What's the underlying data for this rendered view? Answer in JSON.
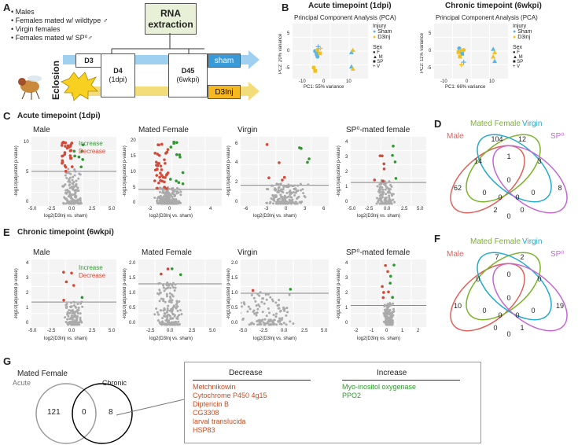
{
  "panels": {
    "A": "A",
    "B": "B",
    "C": "C",
    "D": "D",
    "E": "E",
    "F": "F",
    "G": "G"
  },
  "panelA": {
    "groups": [
      "Males",
      "Females mated w/ wildtype ♂",
      "Virgin females",
      "Females mated w/ SP⁰♂"
    ],
    "rna": "RNA extraction",
    "eclosion": "Eclosion",
    "d3": "D3",
    "d4": "D4",
    "d4sub": "(1dpi)",
    "d45": "D45",
    "d45sub": "(6wkpi)",
    "sham": "sham",
    "inj": "D3Inj"
  },
  "panelB": {
    "acute_title": "Acute timepoint (1dpi)",
    "chronic_title": "Chronic timepoint (6wkpi)",
    "pca_title": "Principal Component Analysis (PCA)",
    "acute_y": "PC2: 20% variance",
    "acute_x": "PC1: 55% variance",
    "chronic_y": "PC2: 11% variance",
    "chronic_x": "PC1: 66% variance",
    "injury_label": "Injury",
    "sham_label": "Sham",
    "inj_label": "D3inj",
    "sex_label": "Sex",
    "sex_items": [
      "F",
      "M",
      "SP",
      "V"
    ],
    "acute_xticks": [
      "-10",
      "0",
      "10"
    ],
    "acute_yticks": [
      "5",
      "0",
      "-5"
    ],
    "chronic_xticks": [
      "-10",
      "0",
      "10"
    ],
    "chronic_yticks": [
      "5",
      "0",
      "-5"
    ]
  },
  "panelC": {
    "title": "Acute timepoint (1dpi)",
    "plots": [
      "Male",
      "Mated Female",
      "Virgin",
      "SP⁰-mated female"
    ],
    "increase": "Increase",
    "decrease": "Decrease",
    "ylabel": "-log10(adjusted p-value)",
    "xlabel": "log2(D3Inj vs. sham)",
    "male_yticks": [
      "10",
      "5",
      "0"
    ],
    "male_xticks": [
      "-5.0",
      "-2.5",
      "0.0",
      "2.5",
      "5.0"
    ],
    "mf_yticks": [
      "20",
      "15",
      "10",
      "5",
      "0"
    ],
    "mf_xticks": [
      "-2",
      "0",
      "2",
      "4"
    ],
    "v_yticks": [
      "6",
      "4",
      "2",
      "0"
    ],
    "v_xticks": [
      "-6",
      "-3",
      "0",
      "3",
      "6"
    ],
    "sp_yticks": [
      "4",
      "3",
      "2",
      "1",
      "0"
    ],
    "sp_xticks": [
      "-5.0",
      "-2.5",
      "0.0",
      "2.5",
      "5.0"
    ]
  },
  "panelE": {
    "title": "Chronic timepoint (6wkpi)",
    "plots": [
      "Male",
      "Mated Female",
      "Virgin",
      "SP⁰-mated female"
    ],
    "increase": "Increase",
    "decrease": "Decrease",
    "ylabel": "-log10(adjusted p-value)",
    "xlabel": "log2(D3Inj vs. sham)",
    "male_yticks": [
      "4",
      "3",
      "2",
      "1",
      "0"
    ],
    "male_xticks": [
      "-5.0",
      "-2.5",
      "0.0",
      "2.5",
      "5.0"
    ],
    "mf_yticks": [
      "2.0",
      "1.5",
      "1.0",
      "0.5",
      "0.0"
    ],
    "mf_xticks": [
      "-2.5",
      "0.0",
      "2.5",
      "5.0"
    ],
    "v_yticks": [
      "2.0",
      "1.5",
      "1.0",
      "0.5",
      "0.0"
    ],
    "v_xticks": [
      "-5.0",
      "-2.5",
      "0.0",
      "2.5",
      "5.0"
    ],
    "sp_yticks": [
      "4",
      "3",
      "2",
      "1",
      "0"
    ],
    "sp_xticks": [
      "-2",
      "-1",
      "0",
      "1",
      "2"
    ]
  },
  "venn": {
    "labels": [
      "Male",
      "Mated Female",
      "Virgin",
      "SP⁰"
    ],
    "D_counts": [
      "62",
      "104",
      "12",
      "8",
      "14",
      "1",
      "3",
      "0",
      "0",
      "0",
      "2",
      "0",
      "0",
      "0",
      "0"
    ],
    "F_counts": [
      "10",
      "7",
      "2",
      "19",
      "0",
      "0",
      "0",
      "0",
      "0",
      "0",
      "0",
      "1",
      "0",
      "0",
      "0"
    ]
  },
  "panelG": {
    "title": "Mated Female",
    "acute": "Acute",
    "chronic": "Chronic",
    "acute_only": "121",
    "shared": "0",
    "chronic_only": "8",
    "decrease_label": "Decrease",
    "increase_label": "Increase",
    "decrease_genes": [
      "Metchnikowin",
      "Cytochrome P450 4g15",
      "Diptericin B",
      "CG3308",
      "larval translucida",
      "HSP83"
    ],
    "increase_genes": [
      "Myo-inositol oxygenase",
      "PPO2"
    ]
  },
  "colors": {
    "sham": "#5bb5e6",
    "inj": "#f0c020",
    "increase": "#2e9a2e",
    "decrease": "#d24a3a",
    "male": "#e0605a",
    "mated": "#7ab22a",
    "virgin": "#22aacc",
    "sp": "#c266d6"
  }
}
